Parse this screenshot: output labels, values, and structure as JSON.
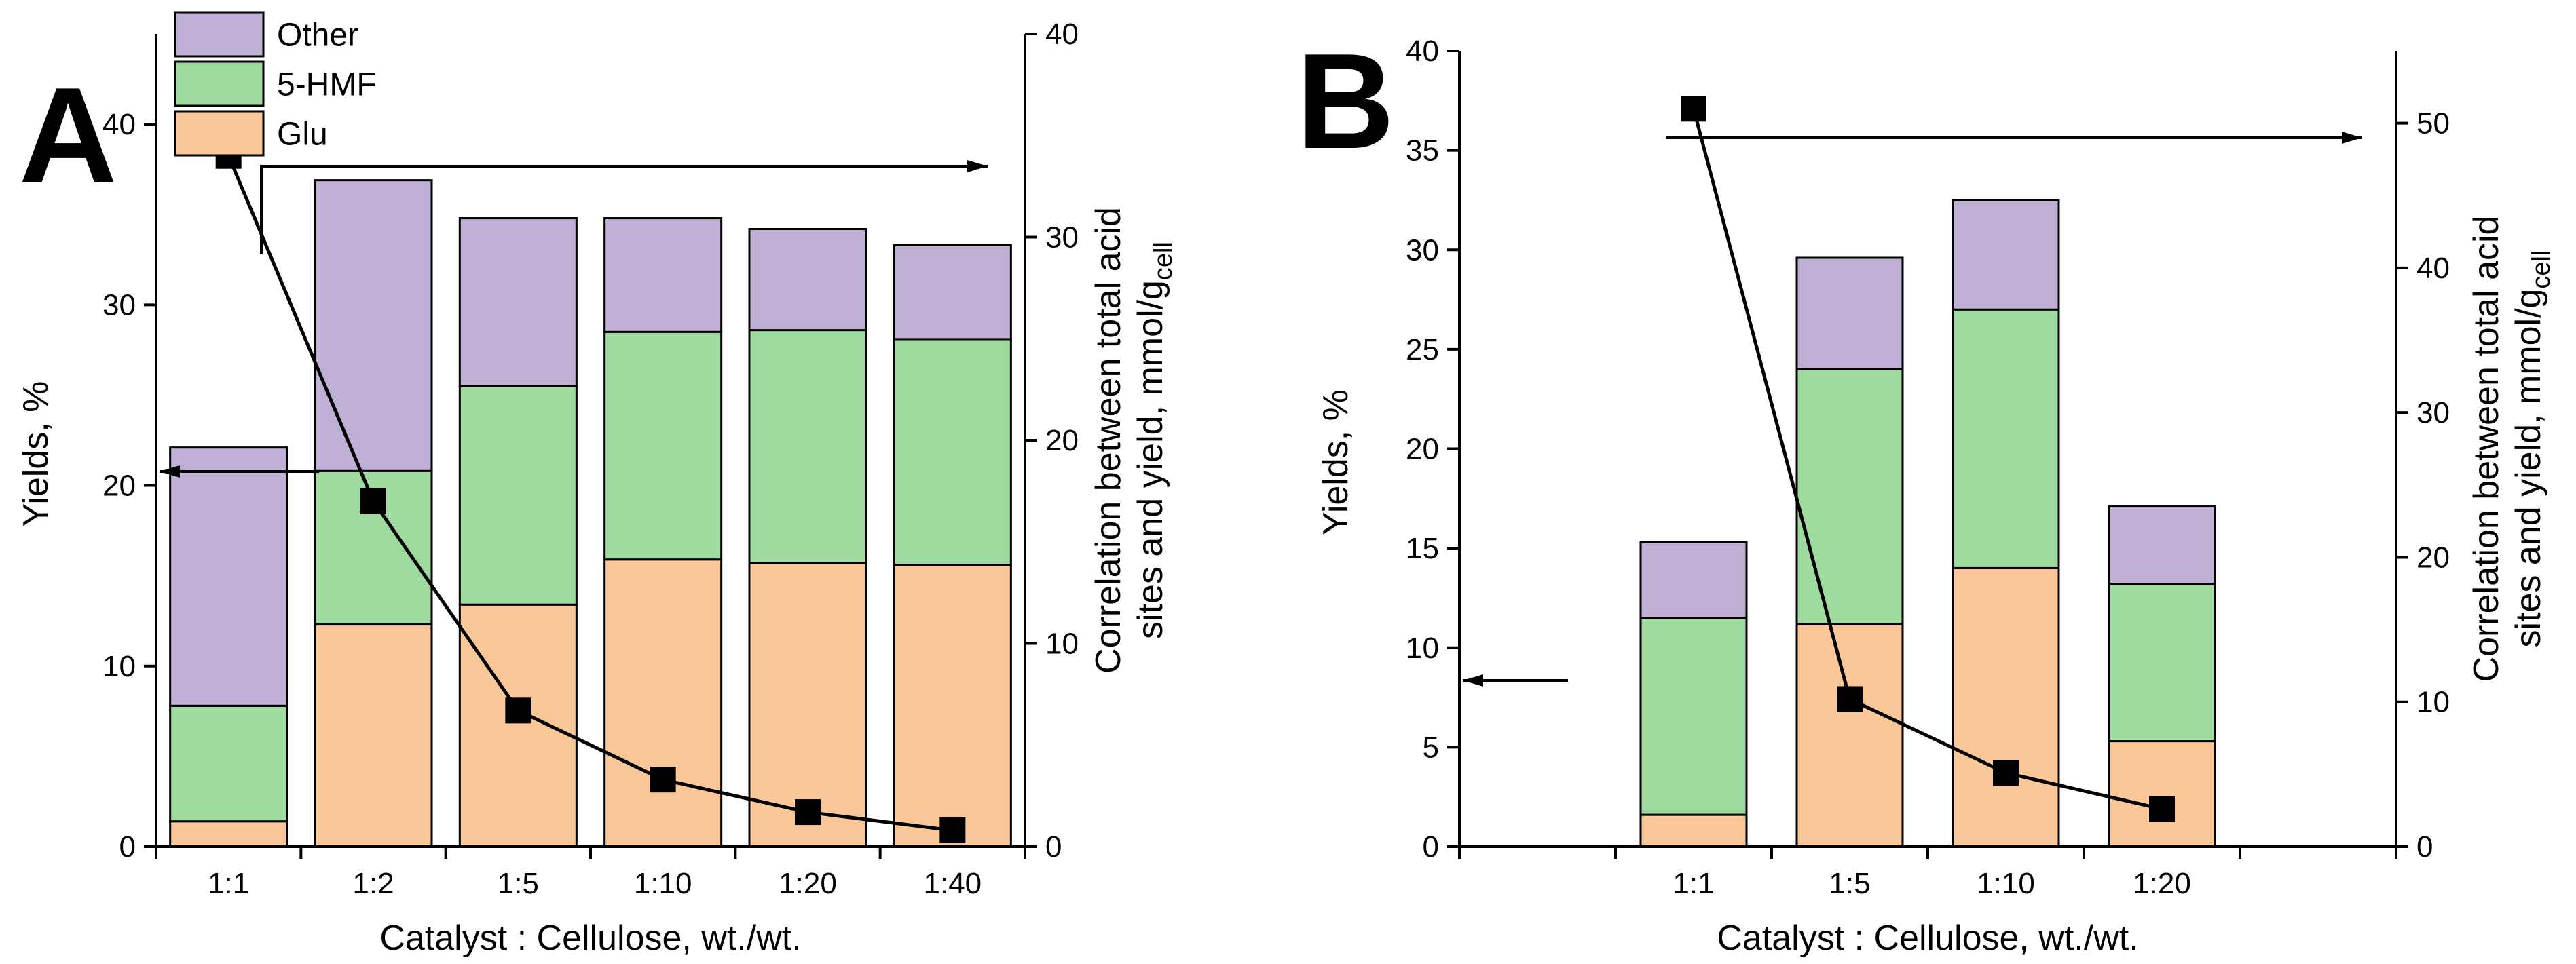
{
  "colors": {
    "Glu": "#fac898",
    "5-HMF": "#9fdb9f",
    "Other": "#c0b0d6"
  },
  "legend": [
    {
      "label": "Other",
      "color_key": "Other"
    },
    {
      "label": "5-HMF",
      "color_key": "5-HMF"
    },
    {
      "label": "Glu",
      "color_key": "Glu"
    }
  ],
  "chart_data": [
    {
      "panel": "A",
      "type": "bar",
      "stacked": true,
      "xlabel": "Catalyst : Cellulose, wt./wt.",
      "ylabel": "Yields, %",
      "y2label_line1": "Correlation between total acid",
      "y2label_line2": "sites and yield, mmol/g",
      "y2label_sub": "cell",
      "categories": [
        "1:1",
        "1:2",
        "1:5",
        "1:10",
        "1:20",
        "1:40"
      ],
      "ylim": [
        0,
        45
      ],
      "yticks": [
        0,
        10,
        20,
        30,
        40
      ],
      "y2lim": [
        0,
        40
      ],
      "y2ticks": [
        0,
        10,
        20,
        30,
        40
      ],
      "series": [
        {
          "name": "Glu",
          "values": [
            1.4,
            12.3,
            13.4,
            15.9,
            15.7,
            15.6
          ]
        },
        {
          "name": "5-HMF",
          "values": [
            6.4,
            8.5,
            12.1,
            12.6,
            12.9,
            12.5
          ]
        },
        {
          "name": "Other",
          "values": [
            14.3,
            16.1,
            9.3,
            6.3,
            5.6,
            5.2
          ]
        }
      ],
      "line_series": {
        "name": "Correlation between total acid sites and yield",
        "axis": "right",
        "values": [
          34.0,
          17.0,
          6.7,
          3.3,
          1.7,
          0.8
        ]
      },
      "arrows": [
        "left",
        "right"
      ]
    },
    {
      "panel": "B",
      "type": "bar",
      "stacked": true,
      "xlabel": "Catalyst : Cellulose, wt./wt.",
      "ylabel": "Yields, %",
      "y2label_line1": "Correlation between total acid",
      "y2label_line2": "sites and yield, mmol/g",
      "y2label_sub": "cell",
      "categories": [
        "1:1",
        "1:5",
        "1:10",
        "1:20"
      ],
      "ylim": [
        0,
        40
      ],
      "yticks": [
        0,
        5,
        10,
        15,
        20,
        25,
        30,
        35,
        40
      ],
      "y2lim": [
        0,
        55
      ],
      "y2ticks": [
        0,
        10,
        20,
        30,
        40,
        50
      ],
      "series": [
        {
          "name": "Glu",
          "values": [
            1.6,
            11.2,
            14.0,
            5.3
          ]
        },
        {
          "name": "5-HMF",
          "values": [
            9.9,
            12.8,
            13.0,
            7.9
          ]
        },
        {
          "name": "Other",
          "values": [
            3.8,
            5.6,
            5.5,
            3.9
          ]
        }
      ],
      "line_series": {
        "name": "Correlation between total acid sites and yield",
        "axis": "right",
        "values": [
          51.0,
          10.2,
          5.1,
          2.6
        ]
      },
      "arrows": [
        "left",
        "right"
      ]
    }
  ]
}
